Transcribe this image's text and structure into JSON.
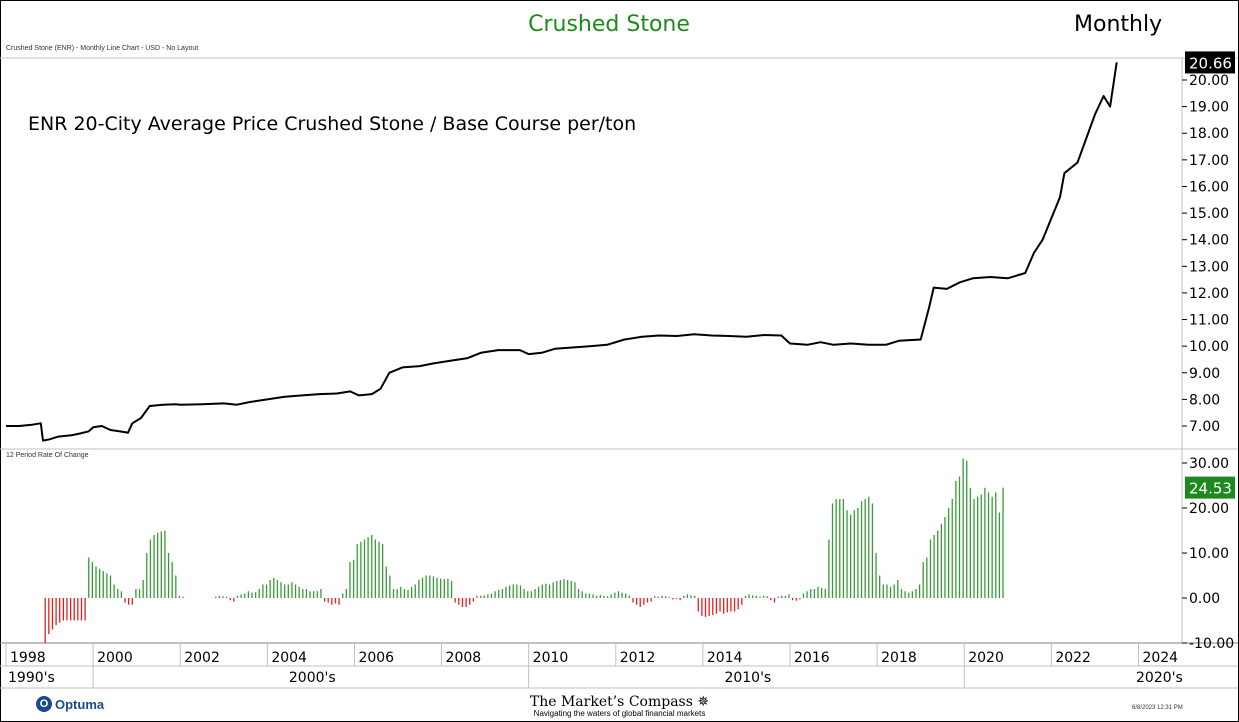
{
  "header": {
    "title": "Crushed Stone",
    "period": "Monthly",
    "subtitle": "Crushed Stone (ENR) - Monthly Line Chart - USD - No Layout"
  },
  "colors": {
    "title": "#1e8a1e",
    "price_line": "#000000",
    "roc_positive": "#3a9a3a",
    "roc_negative": "#e02020",
    "last_value_badge": "#000000",
    "roc_badge": "#1e8a1e"
  },
  "chart_data": [
    {
      "type": "line",
      "title": "ENR 20-City Average Price Crushed Stone / Base Course per/ton",
      "last_value_label": "20.66",
      "ylim": [
        6.5,
        21
      ],
      "yticks": [
        "7.00",
        "8.00",
        "9.00",
        "10.00",
        "11.00",
        "12.00",
        "13.00",
        "14.00",
        "15.00",
        "16.00",
        "17.00",
        "18.00",
        "19.00",
        "20.00"
      ],
      "points": [
        [
          1998.0,
          7.0
        ],
        [
          1998.3,
          7.0
        ],
        [
          1998.6,
          7.05
        ],
        [
          1998.8,
          7.1
        ],
        [
          1998.85,
          6.45
        ],
        [
          1999.0,
          6.5
        ],
        [
          1999.2,
          6.6
        ],
        [
          1999.5,
          6.65
        ],
        [
          1999.7,
          6.72
        ],
        [
          1999.9,
          6.8
        ],
        [
          2000.0,
          6.95
        ],
        [
          2000.2,
          7.0
        ],
        [
          2000.4,
          6.85
        ],
        [
          2000.6,
          6.8
        ],
        [
          2000.8,
          6.75
        ],
        [
          2000.9,
          7.1
        ],
        [
          2001.1,
          7.3
        ],
        [
          2001.3,
          7.75
        ],
        [
          2001.6,
          7.8
        ],
        [
          2001.9,
          7.82
        ],
        [
          2002.0,
          7.8
        ],
        [
          2002.5,
          7.82
        ],
        [
          2003.0,
          7.85
        ],
        [
          2003.3,
          7.8
        ],
        [
          2003.6,
          7.9
        ],
        [
          2004.0,
          8.0
        ],
        [
          2004.4,
          8.1
        ],
        [
          2004.8,
          8.15
        ],
        [
          2005.2,
          8.2
        ],
        [
          2005.6,
          8.22
        ],
        [
          2005.9,
          8.3
        ],
        [
          2006.1,
          8.15
        ],
        [
          2006.4,
          8.2
        ],
        [
          2006.6,
          8.4
        ],
        [
          2006.8,
          9.0
        ],
        [
          2007.1,
          9.2
        ],
        [
          2007.5,
          9.25
        ],
        [
          2007.8,
          9.35
        ],
        [
          2008.2,
          9.45
        ],
        [
          2008.6,
          9.55
        ],
        [
          2008.9,
          9.75
        ],
        [
          2009.3,
          9.85
        ],
        [
          2009.8,
          9.85
        ],
        [
          2010.0,
          9.7
        ],
        [
          2010.3,
          9.75
        ],
        [
          2010.6,
          9.9
        ],
        [
          2011.0,
          9.95
        ],
        [
          2011.4,
          10.0
        ],
        [
          2011.8,
          10.05
        ],
        [
          2012.2,
          10.25
        ],
        [
          2012.6,
          10.35
        ],
        [
          2013.0,
          10.4
        ],
        [
          2013.4,
          10.38
        ],
        [
          2013.8,
          10.45
        ],
        [
          2014.2,
          10.4
        ],
        [
          2014.6,
          10.38
        ],
        [
          2015.0,
          10.35
        ],
        [
          2015.4,
          10.42
        ],
        [
          2015.8,
          10.4
        ],
        [
          2016.0,
          10.1
        ],
        [
          2016.4,
          10.05
        ],
        [
          2016.7,
          10.15
        ],
        [
          2017.0,
          10.05
        ],
        [
          2017.4,
          10.1
        ],
        [
          2017.8,
          10.05
        ],
        [
          2018.2,
          10.05
        ],
        [
          2018.5,
          10.2
        ],
        [
          2019.0,
          10.25
        ],
        [
          2019.2,
          11.5
        ],
        [
          2019.3,
          12.2
        ],
        [
          2019.6,
          12.15
        ],
        [
          2019.9,
          12.4
        ],
        [
          2020.2,
          12.55
        ],
        [
          2020.6,
          12.6
        ],
        [
          2021.0,
          12.55
        ],
        [
          2021.4,
          12.75
        ],
        [
          2021.6,
          13.5
        ],
        [
          2021.8,
          14.0
        ],
        [
          2022.0,
          14.8
        ],
        [
          2022.2,
          15.6
        ],
        [
          2022.3,
          16.5
        ],
        [
          2022.6,
          16.9
        ],
        [
          2022.8,
          17.8
        ],
        [
          2023.0,
          18.7
        ],
        [
          2023.2,
          19.4
        ],
        [
          2023.35,
          19.0
        ],
        [
          2023.5,
          20.66
        ]
      ]
    },
    {
      "type": "bar",
      "title": "12 Period Rate Of Change",
      "last_value_label": "24.53",
      "ylim": [
        -10,
        32
      ],
      "yticks": [
        "30.00",
        "20.00",
        "10.00",
        "0.00",
        "-10.00"
      ],
      "x_start": 1998.9,
      "x_step": 0.0833,
      "values": [
        -10,
        -8,
        -7,
        -6,
        -5.5,
        -5,
        -5,
        -5,
        -5,
        -5,
        -5,
        -5,
        9,
        8,
        7,
        6.5,
        6,
        5.5,
        5,
        3,
        2,
        1.5,
        -1,
        -1.5,
        -1.5,
        2,
        2,
        4,
        10,
        13,
        14,
        14.5,
        14.8,
        15,
        10,
        8,
        5,
        0.5,
        0.3,
        0,
        0,
        0,
        0,
        0,
        0,
        0,
        0,
        0.3,
        0.5,
        0.4,
        0.3,
        -0.5,
        -0.8,
        0.5,
        0.8,
        1,
        1.5,
        1.2,
        1.3,
        2,
        3,
        3,
        4,
        4.5,
        4,
        3.5,
        3,
        3,
        3.5,
        3,
        2.5,
        2,
        2,
        1.5,
        1.5,
        1.5,
        2,
        -0.8,
        -1,
        -1.5,
        -1.2,
        -1.5,
        1,
        2,
        8,
        8.5,
        12,
        12.5,
        13,
        13.5,
        14,
        13,
        12.5,
        12,
        7,
        5,
        2,
        2,
        2.5,
        2,
        1.8,
        2.5,
        3,
        4,
        4.5,
        5,
        5,
        4.8,
        4.5,
        4.3,
        4.2,
        4.3,
        3.8,
        -1,
        -1.5,
        -2,
        -2,
        -1.5,
        -0.8,
        0.5,
        0.5,
        0.6,
        0.8,
        1,
        1.5,
        1.8,
        2,
        2.5,
        2.8,
        3,
        3,
        2.8,
        2,
        1.5,
        1.5,
        2,
        2.5,
        3,
        3.2,
        3,
        3.5,
        3.8,
        4,
        4.2,
        4,
        3.8,
        3.5,
        2,
        1.5,
        1,
        1,
        0.8,
        0.5,
        0.7,
        0.5,
        0.4,
        0.8,
        1.2,
        1.5,
        1.2,
        1,
        0.5,
        -1,
        -1.5,
        -2,
        -1.5,
        -1,
        -0.8,
        0.4,
        0.3,
        0.5,
        0.4,
        0.2,
        -0.3,
        -0.2,
        -0.5,
        0.5,
        0.8,
        0.6,
        0.5,
        -3,
        -4,
        -4.2,
        -4,
        -3.8,
        -3.5,
        -3,
        -3.5,
        -3.2,
        -3,
        -3,
        -2.5,
        -1.5,
        0.5,
        0.8,
        0.6,
        0.5,
        0.3,
        0.5,
        0.4,
        -0.5,
        -1,
        0.3,
        0.5,
        0.5,
        0.8,
        -0.5,
        -0.6,
        -0.3,
        1,
        1.5,
        2,
        2,
        2.5,
        2.2,
        2,
        13,
        21,
        22,
        22,
        22,
        19.5,
        18.5,
        19.5,
        20,
        21.5,
        22,
        22.5,
        21,
        10,
        5,
        3,
        3,
        2.5,
        3,
        4,
        2,
        1.5,
        1.2,
        1.5,
        2,
        3,
        8,
        9,
        13,
        14,
        15,
        16.5,
        18,
        20,
        22,
        26,
        27,
        31,
        30.5,
        24.5,
        22,
        22.5,
        23,
        24.5,
        23.5,
        22.5,
        23.5,
        19,
        24.53
      ]
    }
  ],
  "x_axis": {
    "years": [
      "1998",
      "2000",
      "2002",
      "2004",
      "2006",
      "2008",
      "2010",
      "2012",
      "2014",
      "2016",
      "2018",
      "2020",
      "2022",
      "2024"
    ],
    "decades": [
      "1990's",
      "2000's",
      "2010's",
      "2020's"
    ]
  },
  "footer": {
    "optuma": "Optuma",
    "optuma_icon": "optuma-logo-icon",
    "brand_name": "The Market’s Compass",
    "brand_icon": "compass-rose-icon",
    "brand_tagline": "Navigating the waters of global financial markets",
    "timestamp": "6/8/2023 12:31 PM"
  }
}
